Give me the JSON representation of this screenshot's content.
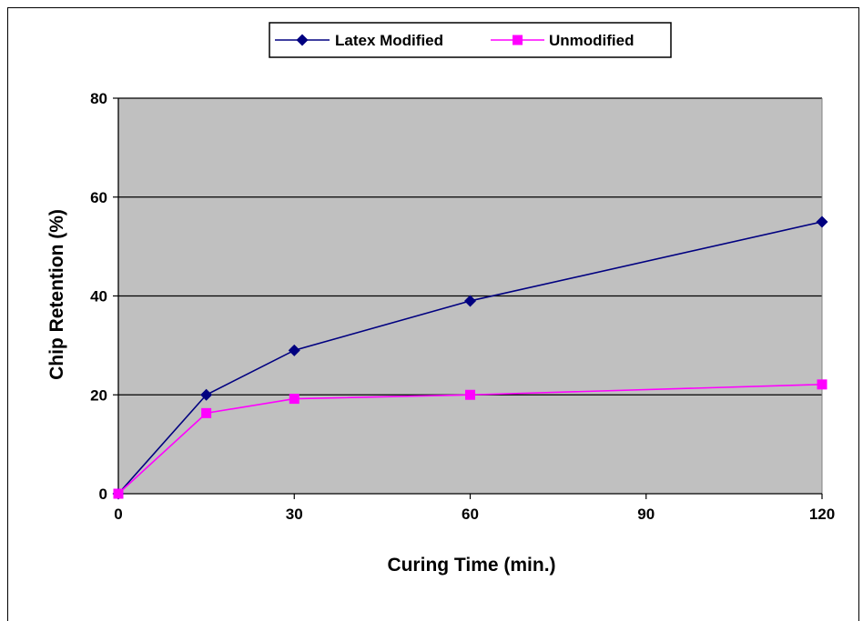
{
  "chart_data": {
    "type": "line",
    "title": "",
    "xlabel": "Curing Time (min.)",
    "ylabel": "Chip Retention (%)",
    "xlim": [
      0,
      120
    ],
    "ylim": [
      0,
      80
    ],
    "xticks": [
      0,
      30,
      60,
      90,
      120
    ],
    "yticks": [
      0,
      20,
      40,
      60,
      80
    ],
    "grid": "horizontal major",
    "legend_position": "top-center",
    "plot_background": "#c0c0c0",
    "series": [
      {
        "name": "Latex Modified",
        "marker": "diamond",
        "color": "#000080",
        "x": [
          0,
          15,
          30,
          60,
          120
        ],
        "y": [
          0,
          20,
          29,
          39,
          55
        ]
      },
      {
        "name": "Unmodified",
        "marker": "square",
        "color": "#ff00ff",
        "x": [
          0,
          15,
          30,
          60,
          120
        ],
        "y": [
          0,
          16.3,
          19.2,
          20,
          22.1
        ]
      }
    ]
  }
}
